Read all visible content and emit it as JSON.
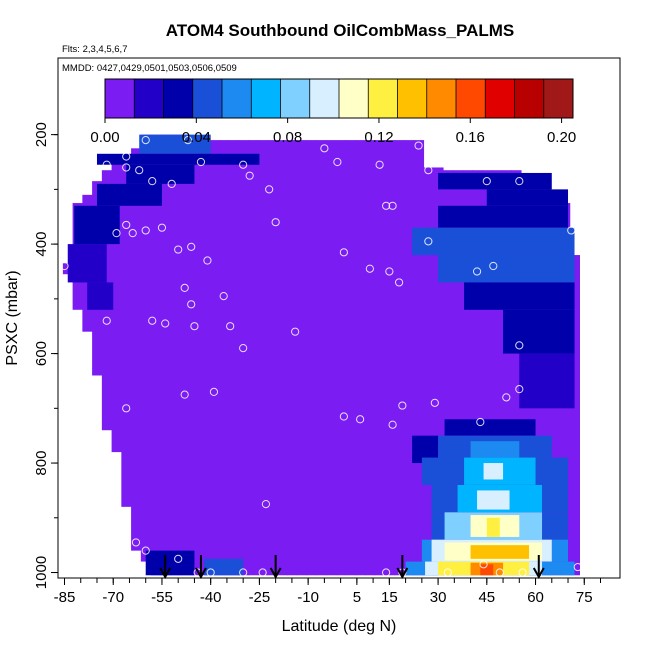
{
  "chart_data": {
    "type": "heatmap",
    "title": "ATOM4 Southbound OilCombMass_PALMS",
    "flights_label": "Flts: 2,3,4,5,6,7",
    "dates_label": "MMDD: 0427,0429,0501,0503,0506,0509",
    "xlabel": "Latitude (deg N)",
    "ylabel": "PSXC (mbar)",
    "x_ticks": [
      "-85",
      "-70",
      "-55",
      "-40",
      "-25",
      "-10",
      "5",
      "15",
      "30",
      "45",
      "60",
      "75"
    ],
    "x_tick_values": [
      -85,
      -70,
      -55,
      -40,
      -25,
      -10,
      5,
      15,
      30,
      45,
      60,
      75
    ],
    "y_ticks": [
      "200",
      "400",
      "600",
      "800",
      "1000"
    ],
    "y_tick_values": [
      200,
      400,
      600,
      800,
      1000
    ],
    "xlim": [
      -87,
      86
    ],
    "ylim": [
      1010,
      60
    ],
    "colorbar": {
      "ticks": [
        "0.00",
        "0.04",
        "0.08",
        "0.12",
        "0.16",
        "0.20"
      ],
      "tick_values": [
        0.0,
        0.04,
        0.08,
        0.12,
        0.16,
        0.2
      ],
      "range": [
        0.0,
        0.205
      ],
      "colors": [
        "#7a1cf2",
        "#2200c8",
        "#0000aa",
        "#1a4fd8",
        "#1c8af0",
        "#00b4ff",
        "#7fd0ff",
        "#d8efff",
        "#ffffc8",
        "#ffef40",
        "#ffc000",
        "#ff8a00",
        "#ff4800",
        "#e00000",
        "#b80000",
        "#a01818"
      ]
    },
    "profile_arrows_lat": [
      -54,
      -43,
      -20,
      19,
      61
    ],
    "columns": [
      {
        "lat": -84,
        "top": 435,
        "bottom": 455,
        "v": 0.01
      },
      {
        "lat": -81,
        "top": 325,
        "bottom": 520,
        "v": 0.01
      },
      {
        "lat": -78,
        "top": 310,
        "bottom": 560,
        "v": 0.01
      },
      {
        "lat": -75,
        "top": 285,
        "bottom": 640,
        "v": 0.01
      },
      {
        "lat": -72,
        "top": 265,
        "bottom": 740,
        "v": 0.01
      },
      {
        "lat": -69,
        "top": 245,
        "bottom": 780,
        "v": 0.01
      },
      {
        "lat": -66,
        "top": 240,
        "bottom": 880,
        "v": 0.01
      },
      {
        "lat": -63,
        "top": 225,
        "bottom": 960,
        "v": 0.01
      },
      {
        "lat": -60,
        "top": 200,
        "bottom": 980,
        "v": 0.01
      },
      {
        "lat": -57,
        "top": 200,
        "bottom": 1005,
        "v": 0.01
      },
      {
        "lat": -54,
        "top": 200,
        "bottom": 1005,
        "v": 0.01
      },
      {
        "lat": -51,
        "top": 200,
        "bottom": 1005,
        "v": 0.01
      },
      {
        "lat": -48,
        "top": 200,
        "bottom": 1005,
        "v": 0.01
      },
      {
        "lat": -45,
        "top": 205,
        "bottom": 1005,
        "v": 0.01
      },
      {
        "lat": -42,
        "top": 205,
        "bottom": 1005,
        "v": 0.01
      },
      {
        "lat": -39,
        "top": 210,
        "bottom": 1005,
        "v": 0.01
      },
      {
        "lat": -36,
        "top": 210,
        "bottom": 1005,
        "v": 0.01
      },
      {
        "lat": -33,
        "top": 210,
        "bottom": 1005,
        "v": 0.01
      },
      {
        "lat": -30,
        "top": 210,
        "bottom": 1005,
        "v": 0.01
      },
      {
        "lat": -27,
        "top": 210,
        "bottom": 1005,
        "v": 0.01
      },
      {
        "lat": -24,
        "top": 210,
        "bottom": 1005,
        "v": 0.01
      },
      {
        "lat": -21,
        "top": 210,
        "bottom": 1005,
        "v": 0.01
      },
      {
        "lat": -18,
        "top": 210,
        "bottom": 1005,
        "v": 0.01
      },
      {
        "lat": -15,
        "top": 210,
        "bottom": 1005,
        "v": 0.01
      },
      {
        "lat": -12,
        "top": 210,
        "bottom": 1005,
        "v": 0.01
      },
      {
        "lat": -9,
        "top": 210,
        "bottom": 1005,
        "v": 0.01
      },
      {
        "lat": -6,
        "top": 210,
        "bottom": 1005,
        "v": 0.01
      },
      {
        "lat": -3,
        "top": 210,
        "bottom": 1005,
        "v": 0.01
      },
      {
        "lat": 0,
        "top": 210,
        "bottom": 1005,
        "v": 0.01
      },
      {
        "lat": 3,
        "top": 210,
        "bottom": 1005,
        "v": 0.01
      },
      {
        "lat": 6,
        "top": 210,
        "bottom": 1005,
        "v": 0.01
      },
      {
        "lat": 9,
        "top": 210,
        "bottom": 1005,
        "v": 0.01
      },
      {
        "lat": 12,
        "top": 210,
        "bottom": 1005,
        "v": 0.01
      },
      {
        "lat": 15,
        "top": 210,
        "bottom": 1005,
        "v": 0.01
      },
      {
        "lat": 18,
        "top": 210,
        "bottom": 1005,
        "v": 0.01
      },
      {
        "lat": 21,
        "top": 210,
        "bottom": 1005,
        "v": 0.01
      },
      {
        "lat": 24,
        "top": 210,
        "bottom": 1005,
        "v": 0.01
      },
      {
        "lat": 27,
        "top": 260,
        "bottom": 1005,
        "v": 0.01
      },
      {
        "lat": 30,
        "top": 260,
        "bottom": 1005,
        "v": 0.01
      },
      {
        "lat": 33,
        "top": 265,
        "bottom": 1005,
        "v": 0.01
      },
      {
        "lat": 36,
        "top": 265,
        "bottom": 1005,
        "v": 0.01
      },
      {
        "lat": 39,
        "top": 265,
        "bottom": 1005,
        "v": 0.01
      },
      {
        "lat": 42,
        "top": 265,
        "bottom": 1005,
        "v": 0.01
      },
      {
        "lat": 45,
        "top": 265,
        "bottom": 1005,
        "v": 0.01
      },
      {
        "lat": 48,
        "top": 265,
        "bottom": 1005,
        "v": 0.01
      },
      {
        "lat": 51,
        "top": 265,
        "bottom": 1005,
        "v": 0.01
      },
      {
        "lat": 54,
        "top": 265,
        "bottom": 1005,
        "v": 0.01
      },
      {
        "lat": 57,
        "top": 285,
        "bottom": 1005,
        "v": 0.01
      },
      {
        "lat": 60,
        "top": 285,
        "bottom": 1005,
        "v": 0.01
      },
      {
        "lat": 63,
        "top": 285,
        "bottom": 1005,
        "v": 0.01
      },
      {
        "lat": 66,
        "top": 305,
        "bottom": 1005,
        "v": 0.01
      },
      {
        "lat": 69,
        "top": 325,
        "bottom": 1005,
        "v": 0.01
      },
      {
        "lat": 72,
        "top": 420,
        "bottom": 1005,
        "v": 0.01
      }
    ],
    "patches": [
      {
        "lat0": -62,
        "lat1": -40,
        "p0": 200,
        "p1": 235,
        "v": 0.05
      },
      {
        "lat0": -75,
        "lat1": -25,
        "p0": 235,
        "p1": 255,
        "v": 0.03
      },
      {
        "lat0": -66,
        "lat1": -45,
        "p0": 255,
        "p1": 290,
        "v": 0.035
      },
      {
        "lat0": -75,
        "lat1": -55,
        "p0": 290,
        "p1": 330,
        "v": 0.03
      },
      {
        "lat0": -82,
        "lat1": -68,
        "p0": 330,
        "p1": 400,
        "v": 0.028
      },
      {
        "lat0": -84,
        "lat1": -72,
        "p0": 400,
        "p1": 470,
        "v": 0.022
      },
      {
        "lat0": -78,
        "lat1": -70,
        "p0": 470,
        "p1": 520,
        "v": 0.018
      },
      {
        "lat0": -60,
        "lat1": -45,
        "p0": 960,
        "p1": 1005,
        "v": 0.03
      },
      {
        "lat0": -42,
        "lat1": -30,
        "p0": 975,
        "p1": 1005,
        "v": 0.04
      },
      {
        "lat0": 30,
        "lat1": 65,
        "p0": 270,
        "p1": 300,
        "v": 0.03
      },
      {
        "lat0": 45,
        "lat1": 70,
        "p0": 300,
        "p1": 330,
        "v": 0.03
      },
      {
        "lat0": 30,
        "lat1": 70,
        "p0": 330,
        "p1": 370,
        "v": 0.035
      },
      {
        "lat0": 22,
        "lat1": 72,
        "p0": 370,
        "p1": 420,
        "v": 0.04
      },
      {
        "lat0": 30,
        "lat1": 72,
        "p0": 420,
        "p1": 470,
        "v": 0.045
      },
      {
        "lat0": 38,
        "lat1": 72,
        "p0": 470,
        "p1": 520,
        "v": 0.035
      },
      {
        "lat0": 50,
        "lat1": 72,
        "p0": 520,
        "p1": 600,
        "v": 0.03
      },
      {
        "lat0": 55,
        "lat1": 72,
        "p0": 600,
        "p1": 700,
        "v": 0.022
      },
      {
        "lat0": 32,
        "lat1": 60,
        "p0": 720,
        "p1": 750,
        "v": 0.035
      },
      {
        "lat0": 22,
        "lat1": 30,
        "p0": 750,
        "p1": 800,
        "v": 0.035
      },
      {
        "lat0": 30,
        "lat1": 65,
        "p0": 750,
        "p1": 790,
        "v": 0.045
      },
      {
        "lat0": 40,
        "lat1": 55,
        "p0": 760,
        "p1": 790,
        "v": 0.06
      },
      {
        "lat0": 25,
        "lat1": 70,
        "p0": 790,
        "p1": 840,
        "v": 0.04
      },
      {
        "lat0": 38,
        "lat1": 60,
        "p0": 790,
        "p1": 840,
        "v": 0.065
      },
      {
        "lat0": 44,
        "lat1": 50,
        "p0": 800,
        "p1": 830,
        "v": 0.09
      },
      {
        "lat0": 28,
        "lat1": 70,
        "p0": 840,
        "p1": 890,
        "v": 0.045
      },
      {
        "lat0": 36,
        "lat1": 62,
        "p0": 840,
        "p1": 890,
        "v": 0.075
      },
      {
        "lat0": 42,
        "lat1": 52,
        "p0": 850,
        "p1": 885,
        "v": 0.095
      },
      {
        "lat0": 28,
        "lat1": 70,
        "p0": 890,
        "p1": 940,
        "v": 0.05
      },
      {
        "lat0": 32,
        "lat1": 62,
        "p0": 890,
        "p1": 940,
        "v": 0.085
      },
      {
        "lat0": 40,
        "lat1": 55,
        "p0": 895,
        "p1": 935,
        "v": 0.11
      },
      {
        "lat0": 45,
        "lat1": 49,
        "p0": 900,
        "p1": 935,
        "v": 0.125
      },
      {
        "lat0": 25,
        "lat1": 70,
        "p0": 940,
        "p1": 980,
        "v": 0.06
      },
      {
        "lat0": 28,
        "lat1": 65,
        "p0": 940,
        "p1": 980,
        "v": 0.09
      },
      {
        "lat0": 32,
        "lat1": 62,
        "p0": 945,
        "p1": 978,
        "v": 0.115
      },
      {
        "lat0": 40,
        "lat1": 58,
        "p0": 950,
        "p1": 975,
        "v": 0.13
      },
      {
        "lat0": 20,
        "lat1": 72,
        "p0": 980,
        "p1": 1005,
        "v": 0.06
      },
      {
        "lat0": 26,
        "lat1": 62,
        "p0": 980,
        "p1": 1005,
        "v": 0.1
      },
      {
        "lat0": 30,
        "lat1": 58,
        "p0": 980,
        "p1": 1005,
        "v": 0.125
      },
      {
        "lat0": 40,
        "lat1": 50,
        "p0": 982,
        "p1": 1005,
        "v": 0.145
      },
      {
        "lat0": 43,
        "lat1": 47,
        "p0": 985,
        "p1": 1005,
        "v": 0.16
      }
    ],
    "samples": [
      [
        -85,
        440
      ],
      [
        -69,
        380
      ],
      [
        -66,
        365
      ],
      [
        -64,
        380
      ],
      [
        -60,
        375
      ],
      [
        -60,
        210
      ],
      [
        -66,
        240
      ],
      [
        -66,
        260
      ],
      [
        -72,
        255
      ],
      [
        -62,
        265
      ],
      [
        -58,
        285
      ],
      [
        -52,
        290
      ],
      [
        -50,
        410
      ],
      [
        -46,
        405
      ],
      [
        -55,
        370
      ],
      [
        -54,
        545
      ],
      [
        -58,
        540
      ],
      [
        -72,
        540
      ],
      [
        -48,
        480
      ],
      [
        -46,
        510
      ],
      [
        -45,
        550
      ],
      [
        -41,
        430
      ],
      [
        -36,
        495
      ],
      [
        -34,
        550
      ],
      [
        -30,
        590
      ],
      [
        -28,
        275
      ],
      [
        -30,
        255
      ],
      [
        -43,
        250
      ],
      [
        -47,
        210
      ],
      [
        -22,
        300
      ],
      [
        -20,
        360
      ],
      [
        -14,
        560
      ],
      [
        -48,
        675
      ],
      [
        -39,
        670
      ],
      [
        -66,
        700
      ],
      [
        -66,
        950
      ],
      [
        -63,
        945
      ],
      [
        -60,
        960
      ],
      [
        -50,
        975
      ],
      [
        -44,
        1000
      ],
      [
        -40,
        1000
      ],
      [
        -30,
        1000
      ],
      [
        -24,
        1000
      ],
      [
        -23,
        875
      ],
      [
        -5,
        225
      ],
      [
        -1,
        250
      ],
      [
        1,
        415
      ],
      [
        9,
        445
      ],
      [
        14,
        330
      ],
      [
        16,
        330
      ],
      [
        15,
        450
      ],
      [
        18,
        470
      ],
      [
        12,
        255
      ],
      [
        24,
        220
      ],
      [
        27,
        265
      ],
      [
        27,
        395
      ],
      [
        29,
        690
      ],
      [
        19,
        695
      ],
      [
        16,
        730
      ],
      [
        1,
        715
      ],
      [
        6,
        720
      ],
      [
        19,
        1000
      ],
      [
        33,
        1000
      ],
      [
        42,
        450
      ],
      [
        47,
        440
      ],
      [
        49,
        1000
      ],
      [
        56,
        1000
      ],
      [
        55,
        665
      ],
      [
        51,
        680
      ],
      [
        43,
        725
      ],
      [
        55,
        585
      ],
      [
        55,
        285
      ],
      [
        45,
        285
      ],
      [
        71,
        375
      ],
      [
        73,
        990
      ],
      [
        44,
        985
      ],
      [
        14,
        1000
      ]
    ]
  }
}
